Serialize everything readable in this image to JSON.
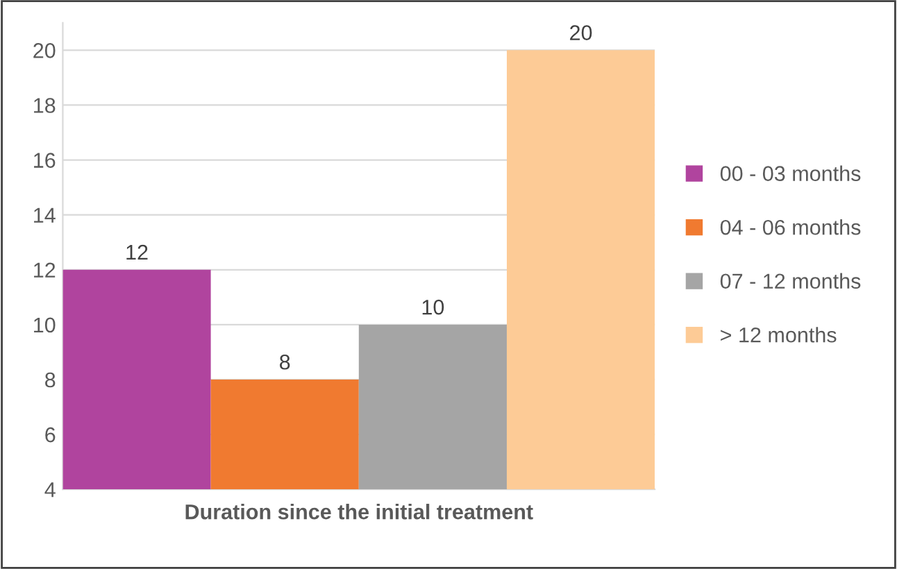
{
  "chart_data": {
    "type": "bar",
    "xlabel": "Duration since the initial treatment",
    "categories": [
      null,
      null,
      null,
      null
    ],
    "series": [
      {
        "name": "00 - 03 months",
        "color": "#b0449e",
        "values": [
          12,
          null,
          null,
          null
        ]
      },
      {
        "name": "04 - 06 months",
        "color": "#f07a30",
        "values": [
          null,
          8,
          null,
          null
        ]
      },
      {
        "name": "07 - 12 months",
        "color": "#a5a5a5",
        "values": [
          null,
          null,
          10,
          null
        ]
      },
      {
        "name": "> 12 months",
        "color": "#fdcb96",
        "values": [
          null,
          null,
          null,
          20
        ]
      }
    ],
    "ylim": [
      4,
      21
    ],
    "yticks": [
      4,
      6,
      8,
      10,
      12,
      14,
      16,
      18,
      20
    ],
    "grid": "y",
    "legend": "right",
    "data_labels": true
  }
}
